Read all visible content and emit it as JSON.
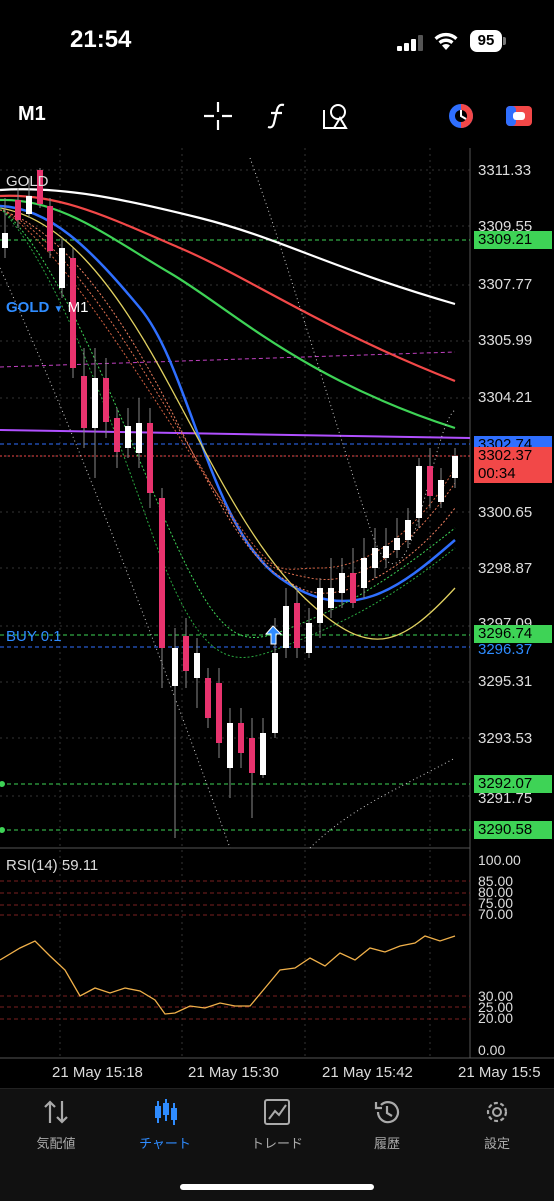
{
  "status_bar": {
    "time": "21:54",
    "battery": "95"
  },
  "toolbar": {
    "timeframe": "M1",
    "icons": [
      "crosshair-icon",
      "function-icon",
      "objects-icon",
      "indicator-toggle-icon",
      "trade-toggle-icon"
    ]
  },
  "chart": {
    "symbol": "GOLD",
    "dropdown_caret": "▼",
    "timeframe": "M1",
    "symbol_description": "GOLD",
    "order_line_label": "BUY 0.1",
    "price_levels": [
      "3311.33",
      "3309.55",
      "3307.77",
      "3305.99",
      "3304.21",
      "3302.43",
      "3300.65",
      "3298.87",
      "3297.09",
      "3295.31",
      "3293.53",
      "3291.75"
    ],
    "price_tags": {
      "tp_upper": "3309.21",
      "ask_line": "3302.74",
      "bid_price": "3302.37",
      "countdown": "00:34",
      "buy_level": "3296.74",
      "buy_line": "3296.37",
      "sl_upper": "3292.07",
      "sl_lower": "3290.58"
    },
    "colors": {
      "bull": "#ffffff",
      "bear": "#e8336e",
      "ema_fast": "#2f6fff",
      "ema_slow": "#ffffff",
      "ema_red": "#f24848",
      "ema_green": "#3ed356",
      "rsi_line": "#f0b04a",
      "accent": "#2f8cff"
    }
  },
  "rsi": {
    "label": "RSI(14) 59.11",
    "levels": [
      "100.00",
      "85.00",
      "80.00",
      "75.00",
      "70.00",
      "30.00",
      "25.00",
      "20.00",
      "0.00"
    ]
  },
  "time_axis": [
    "21 May 15:18",
    "21 May 15:30",
    "21 May 15:42",
    "21 May 15:5"
  ],
  "tabs": [
    {
      "label": "気配値",
      "icon": "quotes-icon",
      "active": false
    },
    {
      "label": "チャート",
      "icon": "chart-icon",
      "active": true
    },
    {
      "label": "トレード",
      "icon": "trade-icon",
      "active": false
    },
    {
      "label": "履歴",
      "icon": "history-icon",
      "active": false
    },
    {
      "label": "設定",
      "icon": "settings-icon",
      "active": false
    }
  ]
}
